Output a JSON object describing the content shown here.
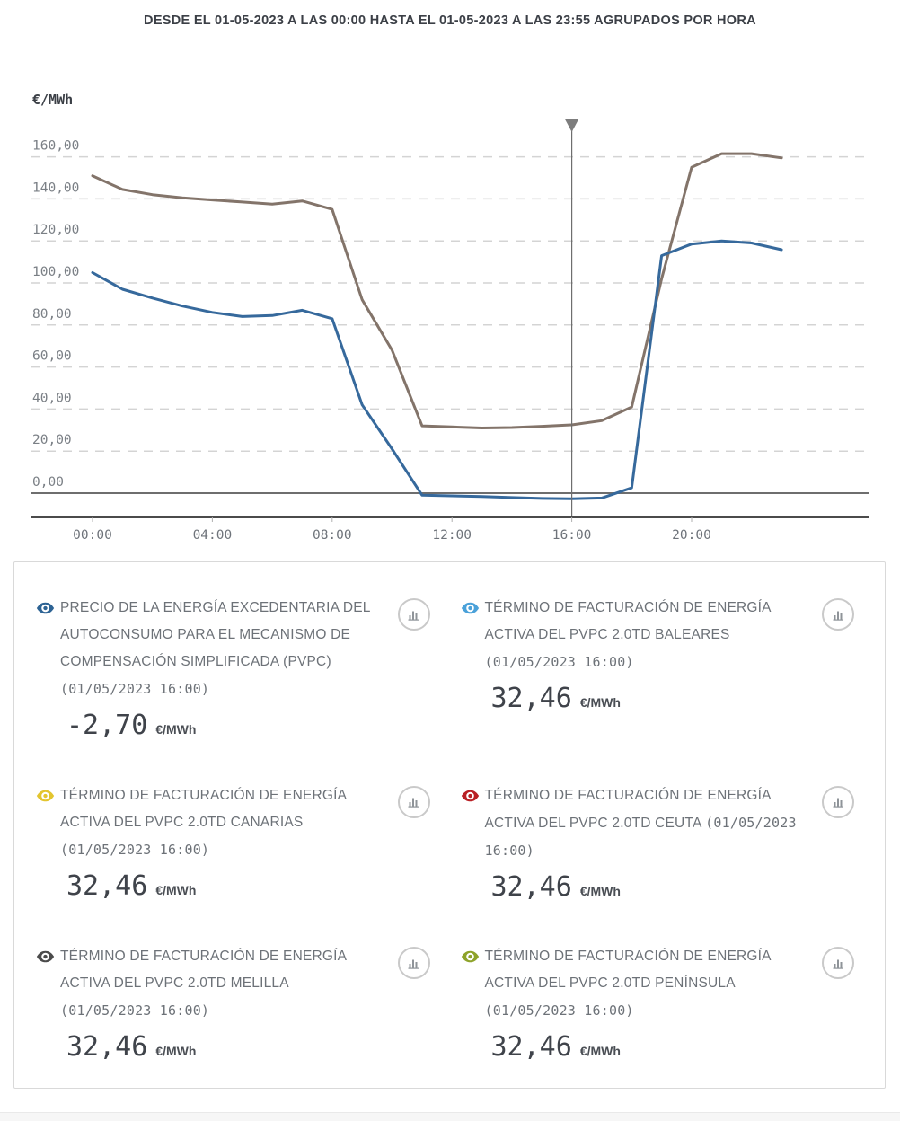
{
  "page": {
    "title": "DESDE EL 01-05-2023 A LAS 00:00 HASTA EL 01-05-2023 A LAS 23:55 AGRUPADOS POR HORA"
  },
  "chart_data": {
    "type": "line",
    "title": "",
    "ylabel": "€/MWh",
    "grid": "dashed-horizontal",
    "ylim": [
      -11,
      168
    ],
    "y_ticks": [
      0,
      20,
      40,
      60,
      80,
      100,
      120,
      140,
      160
    ],
    "y_tick_labels": [
      "0,00",
      "20,00",
      "40,00",
      "60,00",
      "80,00",
      "100,00",
      "120,00",
      "140,00",
      "160,00"
    ],
    "x": [
      "00:00",
      "01:00",
      "02:00",
      "03:00",
      "04:00",
      "05:00",
      "06:00",
      "07:00",
      "08:00",
      "09:00",
      "10:00",
      "11:00",
      "12:00",
      "13:00",
      "14:00",
      "15:00",
      "16:00",
      "17:00",
      "18:00",
      "19:00",
      "20:00",
      "21:00",
      "22:00",
      "23:00"
    ],
    "x_ticks": [
      "00:00",
      "04:00",
      "08:00",
      "12:00",
      "16:00",
      "20:00"
    ],
    "cursor": {
      "x": "16:00",
      "marker": "triangle-down-icon",
      "color": "#6e6e6e"
    },
    "series": [
      {
        "id": "termino-facturacion-line",
        "name": "TÉRMINO DE FACTURACIÓN DE ENERGÍA ACTIVA DEL PVPC 2.0TD",
        "color": "#83746a",
        "values": [
          151.0,
          144.5,
          142.0,
          140.5,
          139.5,
          138.5,
          137.5,
          139.0,
          135.0,
          92.0,
          68.0,
          32.0,
          31.5,
          31.0,
          31.2,
          31.8,
          32.46,
          34.5,
          41.0,
          102.0,
          155.0,
          161.5,
          161.5,
          159.5
        ]
      },
      {
        "id": "precio-excedentaria-line",
        "name": "PRECIO DE LA ENERGÍA EXCEDENTARIA DEL AUTOCONSUMO (PVPC)",
        "color": "#36699c",
        "values": [
          104.9,
          97.0,
          92.8,
          89.0,
          86.0,
          84.0,
          84.5,
          87.0,
          83.0,
          42.0,
          21.0,
          -1.0,
          -1.3,
          -1.6,
          -2.1,
          -2.5,
          -2.7,
          -2.3,
          2.5,
          113.0,
          118.5,
          120.0,
          119.0,
          115.8
        ]
      }
    ],
    "legend_position": "bottom-panel"
  },
  "legend": {
    "cards": [
      {
        "icon": "eye-icon",
        "action_icon": "bar-chart-icon",
        "color": "#2d6394",
        "title": "PRECIO DE LA ENERGÍA EXCEDENTARIA DEL AUTOCONSUMO PARA EL MECANISMO DE COMPENSACIÓN SIMPLIFICADA (PVPC)",
        "datetime": "(01/05/2023 16:00)",
        "value": "-2,70",
        "unit": "€/MWh"
      },
      {
        "icon": "eye-icon",
        "action_icon": "bar-chart-icon",
        "color": "#4aa1d9",
        "title": "TÉRMINO DE FACTURACIÓN DE ENERGÍA ACTIVA DEL PVPC 2.0TD BALEARES",
        "datetime": "(01/05/2023 16:00)",
        "value": "32,46",
        "unit": "€/MWh"
      },
      {
        "icon": "eye-icon",
        "action_icon": "bar-chart-icon",
        "color": "#e3c52f",
        "title": "TÉRMINO DE FACTURACIÓN DE ENERGÍA ACTIVA DEL PVPC 2.0TD CANARIAS",
        "datetime": "(01/05/2023 16:00)",
        "value": "32,46",
        "unit": "€/MWh"
      },
      {
        "icon": "eye-icon",
        "action_icon": "bar-chart-icon",
        "color": "#b92025",
        "title": "TÉRMINO DE FACTURACIÓN DE ENERGÍA ACTIVA DEL PVPC 2.0TD CEUTA",
        "datetime": "(01/05/2023 16:00)",
        "value": "32,46",
        "unit": "€/MWh"
      },
      {
        "icon": "eye-icon",
        "action_icon": "bar-chart-icon",
        "color": "#4b4b4b",
        "title": "TÉRMINO DE FACTURACIÓN DE ENERGÍA ACTIVA DEL PVPC 2.0TD MELILLA",
        "datetime": "(01/05/2023 16:00)",
        "value": "32,46",
        "unit": "€/MWh"
      },
      {
        "icon": "eye-icon",
        "action_icon": "bar-chart-icon",
        "color": "#8ea32a",
        "title": "TÉRMINO DE FACTURACIÓN DE ENERGÍA ACTIVA DEL PVPC 2.0TD PENÍNSULA",
        "datetime": "(01/05/2023 16:00)",
        "value": "32,46",
        "unit": "€/MWh"
      }
    ]
  }
}
